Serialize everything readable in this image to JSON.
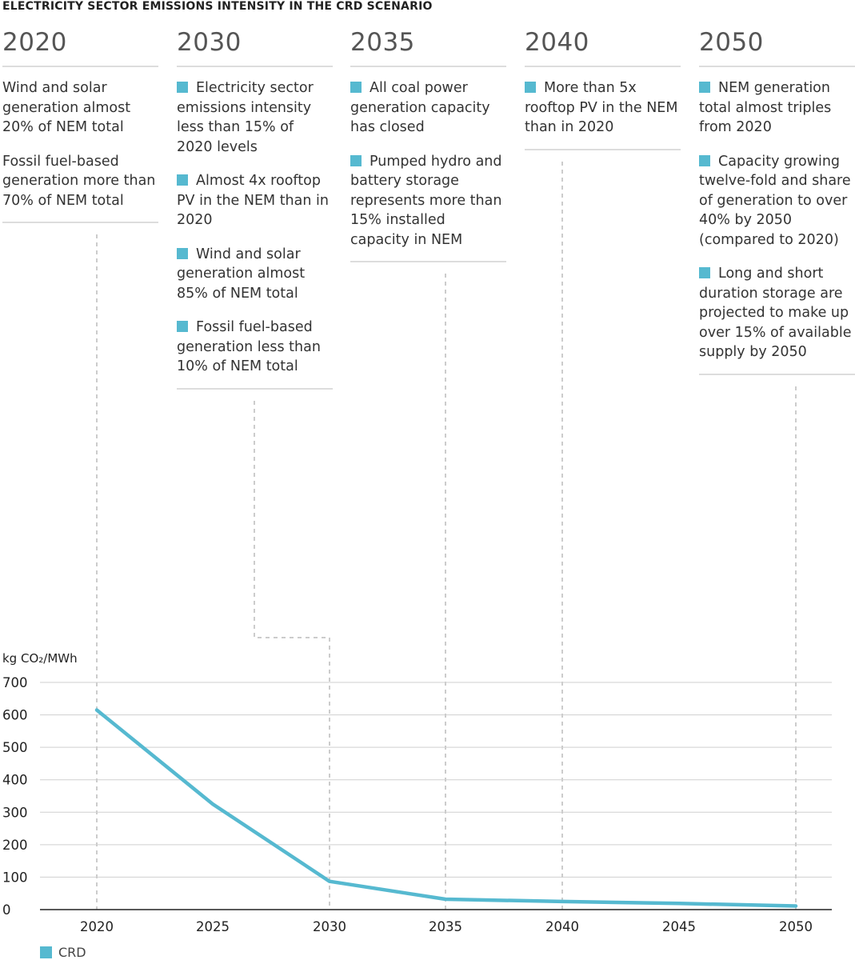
{
  "title": "ELECTRICITY SECTOR EMISSIONS INTENSITY IN THE CRD SCENARIO",
  "accent_color": "#56b9d0",
  "milestones": [
    {
      "year": "2020",
      "bullets": [
        {
          "marker": false,
          "text": "Wind and solar generation almost 20% of NEM total"
        },
        {
          "marker": false,
          "text": "Fossil fuel-based generation more than 70% of NEM total"
        }
      ]
    },
    {
      "year": "2030",
      "bullets": [
        {
          "marker": true,
          "text": "Electricity sector emissions intensity less than 15% of 2020 levels"
        },
        {
          "marker": true,
          "text": "Almost 4x rooftop PV in the NEM than in 2020"
        },
        {
          "marker": true,
          "text": "Wind and solar generation almost 85% of NEM total"
        },
        {
          "marker": true,
          "text": "Fossil fuel-based generation less than 10% of NEM total"
        }
      ]
    },
    {
      "year": "2035",
      "bullets": [
        {
          "marker": true,
          "text": "All coal power generation capacity has closed"
        },
        {
          "marker": true,
          "text": "Pumped hydro and battery storage represents more than 15% installed capacity in NEM"
        }
      ]
    },
    {
      "year": "2040",
      "bullets": [
        {
          "marker": true,
          "text": "More than 5x rooftop PV in the NEM than in 2020"
        }
      ]
    },
    {
      "year": "2050",
      "bullets": [
        {
          "marker": true,
          "text": "NEM generation total almost triples from 2020"
        },
        {
          "marker": true,
          "text": "Capacity growing twelve-fold and share of generation to over 40% by 2050 (compared to 2020)"
        },
        {
          "marker": true,
          "text": "Long and short duration storage are projected to make up over 15% of available supply by 2050"
        }
      ]
    }
  ],
  "chart_data": {
    "type": "line",
    "title": "ELECTRICITY SECTOR EMISSIONS INTENSITY IN THE CRD SCENARIO",
    "ylabel": "kg CO₂/MWh",
    "xlabel": "",
    "x": [
      2020,
      2025,
      2030,
      2035,
      2040,
      2045,
      2050
    ],
    "x_tick_labels": [
      "2020",
      "2025",
      "2030",
      "2035",
      "2040",
      "2045",
      "2050"
    ],
    "y_ticks": [
      0,
      100,
      200,
      300,
      400,
      500,
      600,
      700
    ],
    "y_tick_labels": [
      "0",
      "100",
      "200",
      "300",
      "400",
      "500",
      "600",
      "700"
    ],
    "ylim": [
      0,
      700
    ],
    "grid": true,
    "legend": "bottom-left",
    "series": [
      {
        "name": "CRD",
        "color": "#56b9d0",
        "values": [
          615,
          325,
          87,
          32,
          25,
          19,
          11
        ]
      }
    ]
  }
}
